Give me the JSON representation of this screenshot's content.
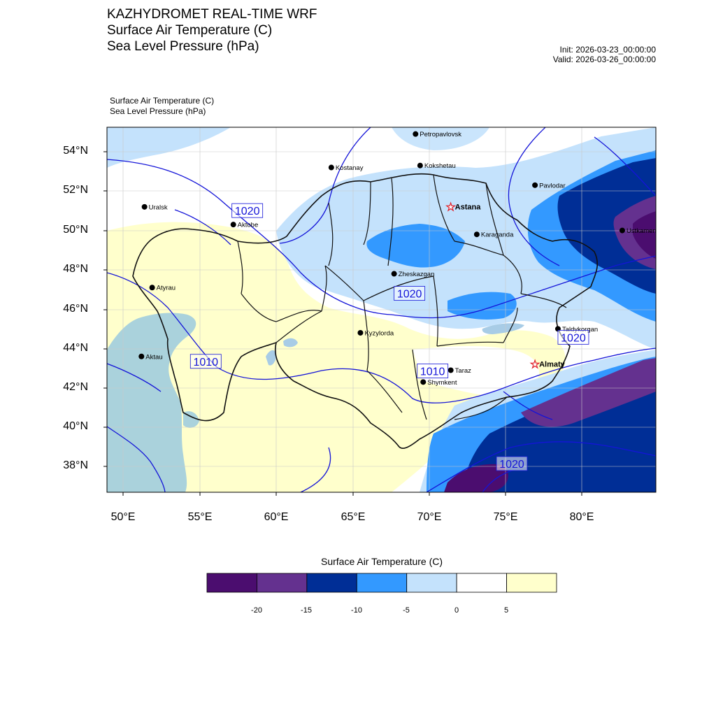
{
  "title": {
    "line1": "KAZHYDROMET REAL-TIME WRF",
    "line2": "Surface Air Temperature  (C)",
    "line3": "Sea Level Pressure  (hPa)"
  },
  "meta": {
    "init": "Init: 2026-03-23_00:00:00",
    "valid": "Valid: 2026-03-26_00:00:00"
  },
  "subtitle": {
    "line1": "Surface Air Temperature   (C)",
    "line2": "Sea Level Pressure   (hPa)"
  },
  "map": {
    "lat_labels": [
      "54°N",
      "52°N",
      "50°N",
      "48°N",
      "46°N",
      "44°N",
      "42°N",
      "40°N",
      "38°N"
    ],
    "lon_labels": [
      "50°E",
      "55°E",
      "60°E",
      "65°E",
      "70°E",
      "75°E",
      "80°E"
    ],
    "cities": [
      {
        "name": "Petropavlovsk",
        "lat": 54.9,
        "lon": 69.1,
        "capital": false
      },
      {
        "name": "Kostanay",
        "lat": 53.2,
        "lon": 63.6,
        "capital": false
      },
      {
        "name": "Kokshetau",
        "lat": 53.3,
        "lon": 69.4,
        "capital": false
      },
      {
        "name": "Pavlodar",
        "lat": 52.3,
        "lon": 76.9,
        "capital": false
      },
      {
        "name": "Uralsk",
        "lat": 51.2,
        "lon": 51.4,
        "capital": false
      },
      {
        "name": "Astana",
        "lat": 51.2,
        "lon": 71.4,
        "capital": true
      },
      {
        "name": "Aktobe",
        "lat": 50.3,
        "lon": 57.2,
        "capital": false
      },
      {
        "name": "Ustkamen",
        "lat": 50.0,
        "lon": 82.6,
        "capital": false
      },
      {
        "name": "Karaganda",
        "lat": 49.8,
        "lon": 73.1,
        "capital": false
      },
      {
        "name": "Atyrau",
        "lat": 47.1,
        "lon": 51.9,
        "capital": false
      },
      {
        "name": "Zheskazgan",
        "lat": 47.8,
        "lon": 67.7,
        "capital": false
      },
      {
        "name": "Taldykorgan",
        "lat": 45.0,
        "lon": 78.4,
        "capital": false
      },
      {
        "name": "Aktau",
        "lat": 43.6,
        "lon": 51.2,
        "capital": false
      },
      {
        "name": "Kyzylorda",
        "lat": 44.8,
        "lon": 65.5,
        "capital": false
      },
      {
        "name": "Almaty",
        "lat": 43.2,
        "lon": 76.9,
        "capital": true
      },
      {
        "name": "Taraz",
        "lat": 42.9,
        "lon": 71.4,
        "capital": false
      },
      {
        "name": "Shymkent",
        "lat": 42.3,
        "lon": 69.6,
        "capital": false
      }
    ],
    "isobar_labels": [
      {
        "value": "1020",
        "near": "Aktobe"
      },
      {
        "value": "1020",
        "near": "Zheskazgan"
      },
      {
        "value": "1010",
        "near": "Aktau"
      },
      {
        "value": "1020",
        "near": "Taldykorgan"
      },
      {
        "value": "1010",
        "near": "Taraz"
      },
      {
        "value": "1020",
        "near": "south-east"
      }
    ],
    "isobar_levels_hPa": [
      1010,
      1020
    ],
    "colors": {
      "isobar": "#1414d8",
      "border": "#000000",
      "sea": "#aad2dc",
      "lake": "#a8cce6"
    }
  },
  "colorbar": {
    "title": "Surface Air Temperature (C)",
    "units": "C",
    "bins": [
      {
        "from": null,
        "to": -20,
        "color": "#4b0d6f"
      },
      {
        "from": -20,
        "to": -15,
        "color": "#64318f"
      },
      {
        "from": -15,
        "to": -10,
        "color": "#002e96"
      },
      {
        "from": -10,
        "to": -5,
        "color": "#3399ff"
      },
      {
        "from": -5,
        "to": 0,
        "color": "#c4e2fc"
      },
      {
        "from": 0,
        "to": 5,
        "color": "#ffffff"
      },
      {
        "from": 5,
        "to": null,
        "color": "#ffffcc"
      }
    ],
    "tick_labels": [
      "-20",
      "-15",
      "-10",
      "-5",
      "0",
      "5"
    ]
  }
}
